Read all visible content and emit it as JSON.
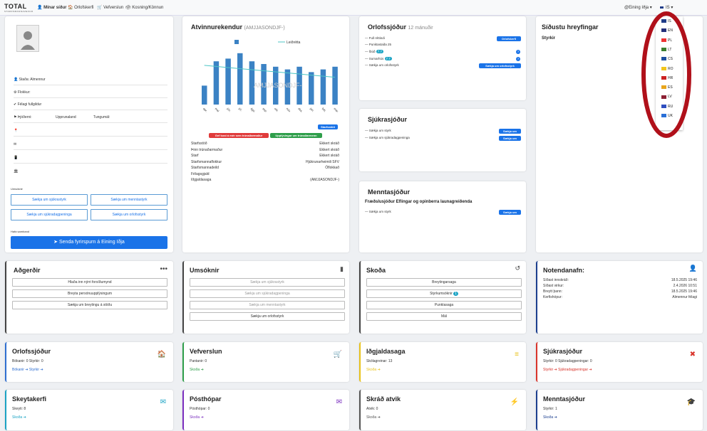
{
  "brand": {
    "logo": "TOTAL",
    "logo_sub": "STARFSMANNAVEFUR"
  },
  "nav": {
    "my_pages": "Mínar síður",
    "holiday": "Orlofskerfi",
    "shop": "Vefverslun",
    "voting": "Kosning/Könnun",
    "union": "@Eining Iðja",
    "lang": "IS"
  },
  "profile": {
    "rows": [
      "Staða: Almennur",
      "Flokkur:",
      "Félagi fullgildur",
      "Þjóðerni:",
      "Upprunaland",
      "Tungumál:"
    ],
    "applications_label": "Umsóknir",
    "apply_buttons": [
      "Sækja um sjúkrastyrk",
      "Sækja um menntastyrk",
      "Sækja um sjúkradagpeninga",
      "Sækja um orlofsstyrk"
    ],
    "contact_label": "Hafa samband",
    "send_button": "Senda fyrirspurn á Eining Iðja"
  },
  "work": {
    "title": "Atvinnurekendur",
    "title_sub": "(AMJJASONDJF-)",
    "legend": "Leiðrétta",
    "watermark": "AMJJASONDJF-",
    "btn_workplace": "Starfsstöð",
    "btn_rep": "Gef kost á mér sem trúnaðarmaður",
    "btn_info": "Upplýsingar um trúnaðarmenn",
    "details": [
      {
        "k": "Starfsstöð",
        "v": "Ekkert skráð"
      },
      {
        "k": "Þinn trúnaðarmaður",
        "v": "Ekkert skráð"
      },
      {
        "k": "Starf",
        "v": "Ekkert skráð"
      },
      {
        "k": "Starfsmannaflokkur",
        "v": "Hjúkrunarheimili SFV"
      },
      {
        "k": "Starfsmannadeild",
        "v": "Óflokkað"
      },
      {
        "k": "Félagsgjald",
        "v": ""
      },
      {
        "k": "Iðgjaldasaga",
        "v": "(AMJJASONDJF-)"
      }
    ]
  },
  "chart_data": {
    "type": "bar",
    "categories": [
      "apr.",
      "maí",
      "jún.",
      "júl.",
      "ágú.",
      "sep.",
      "okt.",
      "nóv.",
      "des.",
      "jan.",
      "feb.",
      "mar."
    ],
    "values": [
      7,
      16,
      17,
      19,
      16,
      15,
      14,
      13,
      14,
      12,
      13,
      14
    ],
    "trend": [
      14.5,
      14.1,
      13.7,
      13.3,
      12.9,
      12.5,
      12.1,
      11.7,
      11.3,
      10.9,
      10.5,
      10.1
    ],
    "ylim": [
      0,
      20
    ],
    "legend": "Leiðrétta"
  },
  "orlof": {
    "title": "Orlofssjóður",
    "title_sub": "12 mánuðir",
    "items": [
      "Full réttindi",
      "Punktastaða 25",
      "Íbúð",
      "Sumarhús",
      "Sækja um orlofsstyrk"
    ],
    "badge1": "7.7",
    "badge2": "7.7",
    "btn1": "Orlofskerfi",
    "btn2": "Sækja um orlofsstyrk"
  },
  "sjukra": {
    "title": "Sjúkrasjóður",
    "items": [
      "Sækja um styrk",
      "Sækja um sjúkradagpeninga"
    ],
    "btn1": "Sækja um",
    "btn2": "Sækja um"
  },
  "mennta": {
    "title": "Menntasjóður",
    "subtitle": "Fræðslusjóður Eflingar og opinberra launagreiðenda",
    "items": [
      "Sækja um styrk"
    ],
    "btn": "Sækja um"
  },
  "recent": {
    "title": "Síðustu hreyfingar",
    "sub": "Styrkir"
  },
  "languages": [
    "IS",
    "EN",
    "PL",
    "LT",
    "CS",
    "RO",
    "HR",
    "ES",
    "LV",
    "RU",
    "UK"
  ],
  "adgerdir": {
    "title": "Aðgerðir",
    "buttons": [
      "Hlaða inn nýrri forsíðumynd",
      "Breyta persónuupplýsingum",
      "Sækja um breytingu á stöðu"
    ]
  },
  "umsoknir": {
    "title": "Umsóknir",
    "buttons": [
      "Sækja um sjúkrastyrk",
      "Sækja um sjúkradagpeninga",
      "Sækja um menntastyrk",
      "Sækja um orlofsstyrk"
    ]
  },
  "skoda": {
    "title": "Skoða",
    "buttons": [
      "Breytingarsaga",
      "Styrkumsóknir",
      "Punktasaga",
      "Mál"
    ],
    "badge": "1"
  },
  "notenda": {
    "title": "Notendanafn:",
    "rows": [
      {
        "k": "Síðast innskráð:",
        "v": "18.5.2025 19:46"
      },
      {
        "k": "Síðast virkur:",
        "v": "2.4.2026 10:51"
      },
      {
        "k": "Breytt þann:",
        "v": "18.5.2025 19:46"
      },
      {
        "k": "Kerfishópur:",
        "v": "Almennur félagi"
      }
    ]
  },
  "tiles": [
    {
      "title": "Orlofssjóður",
      "line": "Bókanir: 0   Styrkir: 0",
      "link": "Bókanir",
      "link2": "Styrkir",
      "color": "#2f6fd1"
    },
    {
      "title": "Vefverslun",
      "line": "Pantanir: 0",
      "link": "Skoða",
      "link2": "",
      "color": "#2e9e4a"
    },
    {
      "title": "Iðgjaldasaga",
      "line": "Skólagreinar: 13",
      "link": "Skoða",
      "link2": "",
      "color": "#e8c21a"
    },
    {
      "title": "Sjúkrasjóður",
      "line": "Styrkir: 0   Sjúkradagpeningar: 0",
      "link": "Styrkir",
      "link2": "Sjúkradagpeningar",
      "color": "#d9342b"
    },
    {
      "title": "Skeytakerfi",
      "line": "Skeyti: 8",
      "link": "Skoða",
      "link2": "",
      "color": "#1aa3c4"
    },
    {
      "title": "Pósthópar",
      "line": "Pósthópar: 0",
      "link": "Skoða",
      "link2": "",
      "color": "#7b2fbf"
    },
    {
      "title": "Skráð atvik",
      "line": "Atvik: 0",
      "link": "Skoða",
      "link2": "",
      "color": "#555"
    },
    {
      "title": "Menntasjóður",
      "line": "Styrkir: 1",
      "link": "Skoða",
      "link2": "",
      "color": "#1c3f8f"
    }
  ]
}
